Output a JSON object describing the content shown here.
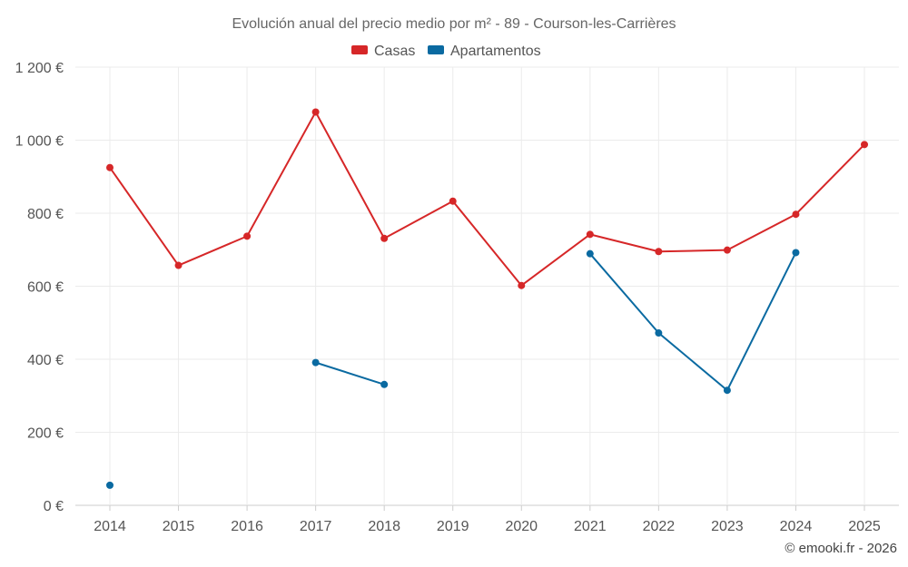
{
  "chart_data": {
    "type": "line",
    "title": "Evolución anual del precio medio por m² - 89 - Courson-les-Carrières",
    "categories": [
      "2014",
      "2015",
      "2016",
      "2017",
      "2018",
      "2019",
      "2020",
      "2021",
      "2022",
      "2023",
      "2024",
      "2025"
    ],
    "ylim": [
      0,
      1200
    ],
    "yticks": [
      0,
      200,
      400,
      600,
      800,
      1000,
      1200
    ],
    "ytick_labels": [
      "0 €",
      "200 €",
      "400 €",
      "600 €",
      "800 €",
      "1 000 €",
      "1 200 €"
    ],
    "grid": true,
    "legend_position": "top-center",
    "series": [
      {
        "name": "Casas",
        "color": "#d62728",
        "values": [
          925,
          657,
          737,
          1077,
          731,
          833,
          602,
          742,
          695,
          699,
          797,
          988
        ]
      },
      {
        "name": "Apartamentos",
        "color": "#0a6aa1",
        "values": [
          55,
          null,
          null,
          391,
          331,
          null,
          null,
          689,
          472,
          315,
          692,
          null
        ]
      }
    ]
  },
  "credit": "© emooki.fr - 2026"
}
